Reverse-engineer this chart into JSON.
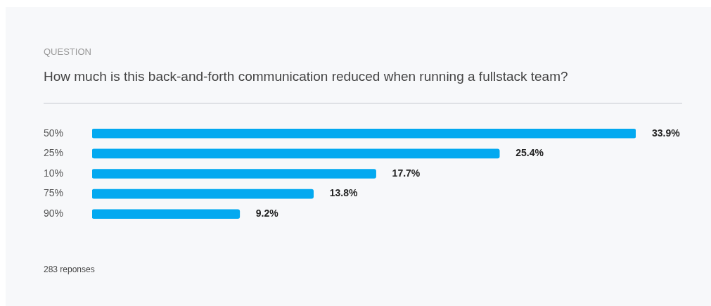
{
  "chart_data": {
    "type": "bar",
    "orientation": "horizontal",
    "subtitle": "QUESTION",
    "title": "How much is this back-and-forth communication reduced when running a fullstack team?",
    "categories": [
      "50%",
      "25%",
      "10%",
      "75%",
      "90%"
    ],
    "values": [
      33.9,
      25.4,
      17.7,
      13.8,
      9.2
    ],
    "value_labels": [
      "33.9%",
      "25.4%",
      "17.7%",
      "13.8%",
      "9.2%"
    ],
    "color": "#03a9f0",
    "annotations": [
      "283 reponses"
    ],
    "legend": false
  }
}
